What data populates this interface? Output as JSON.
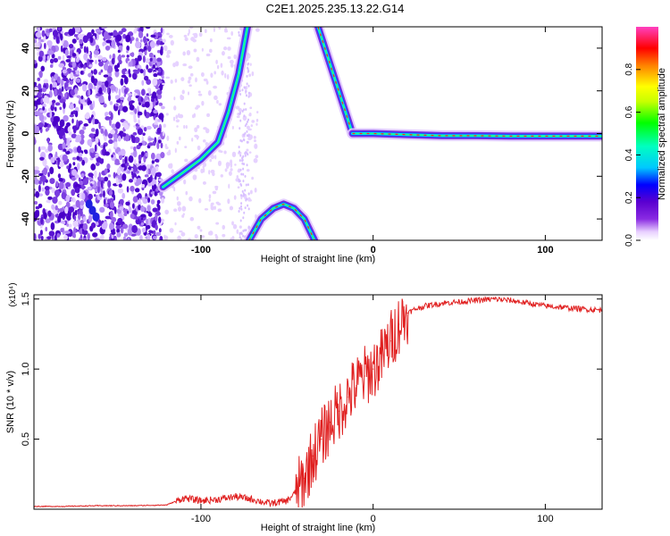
{
  "title": "C2E1.2025.235.13.22.G14",
  "chart_data": [
    {
      "type": "heatmap",
      "xlabel": "Height of straight line (km)",
      "ylabel": "Frequency (Hz)",
      "xlim": [
        -197,
        133
      ],
      "ylim": [
        -50,
        50
      ],
      "xticks": [
        -100,
        0,
        100
      ],
      "yticks": [
        -40,
        -20,
        0,
        20,
        40
      ],
      "colorbar": {
        "label": "Normalized spectral amplitude",
        "range": [
          0,
          1
        ],
        "ticks": [
          0.0,
          0.2,
          0.4,
          0.6,
          0.8
        ],
        "colors": [
          "#ffffff",
          "#e8d0ff",
          "#8a2be2",
          "#5a00d0",
          "#0000ff",
          "#00c8ff",
          "#00ffc0",
          "#00ff00",
          "#c8ff00",
          "#ffff00",
          "#ff8000",
          "#ff0000",
          "#ff40c0"
        ]
      },
      "traces": [
        {
          "x": [
            -122,
            -110,
            -100,
            -90,
            -84,
            -78,
            -73
          ],
          "y": [
            -25,
            -18,
            -12,
            -4,
            10,
            28,
            50
          ]
        },
        {
          "x": [
            -72,
            -65,
            -58,
            -52,
            -46,
            -40,
            -34
          ],
          "y": [
            -50,
            -40,
            -35,
            -33,
            -35,
            -40,
            -50
          ]
        },
        {
          "x": [
            -32,
            -28,
            -24,
            -20,
            -16,
            -12
          ],
          "y": [
            50,
            40,
            30,
            20,
            10,
            0
          ]
        },
        {
          "x": [
            -12,
            0,
            20,
            40,
            60,
            80,
            100,
            133
          ],
          "y": [
            0,
            0,
            -0.5,
            -1,
            -1,
            -1.2,
            -1.2,
            -1.2
          ]
        }
      ]
    },
    {
      "type": "line",
      "xlabel": "Height of straight line (km)",
      "ylabel": "SNR (10 * v/v)",
      "y_multiplier": "(x10⁴)",
      "xlim": [
        -197,
        133
      ],
      "ylim": [
        0,
        1.53
      ],
      "xticks": [
        -100,
        0,
        100
      ],
      "yticks": [
        0.5,
        1.0,
        1.5
      ],
      "series_color": "#e02020",
      "x": [
        -197,
        -180,
        -160,
        -140,
        -120,
        -110,
        -100,
        -90,
        -80,
        -70,
        -60,
        -50,
        -45,
        -40,
        -35,
        -30,
        -25,
        -20,
        -15,
        -10,
        -5,
        0,
        5,
        10,
        15,
        20,
        25,
        30,
        40,
        50,
        60,
        70,
        80,
        90,
        100,
        110,
        120,
        133
      ],
      "y": [
        0.02,
        0.02,
        0.025,
        0.025,
        0.03,
        0.08,
        0.06,
        0.07,
        0.09,
        0.07,
        0.04,
        0.06,
        0.12,
        0.22,
        0.38,
        0.5,
        0.62,
        0.7,
        0.8,
        0.88,
        0.95,
        1.0,
        1.08,
        1.2,
        1.32,
        1.4,
        1.43,
        1.45,
        1.47,
        1.48,
        1.49,
        1.5,
        1.49,
        1.47,
        1.45,
        1.44,
        1.43,
        1.42
      ]
    }
  ]
}
